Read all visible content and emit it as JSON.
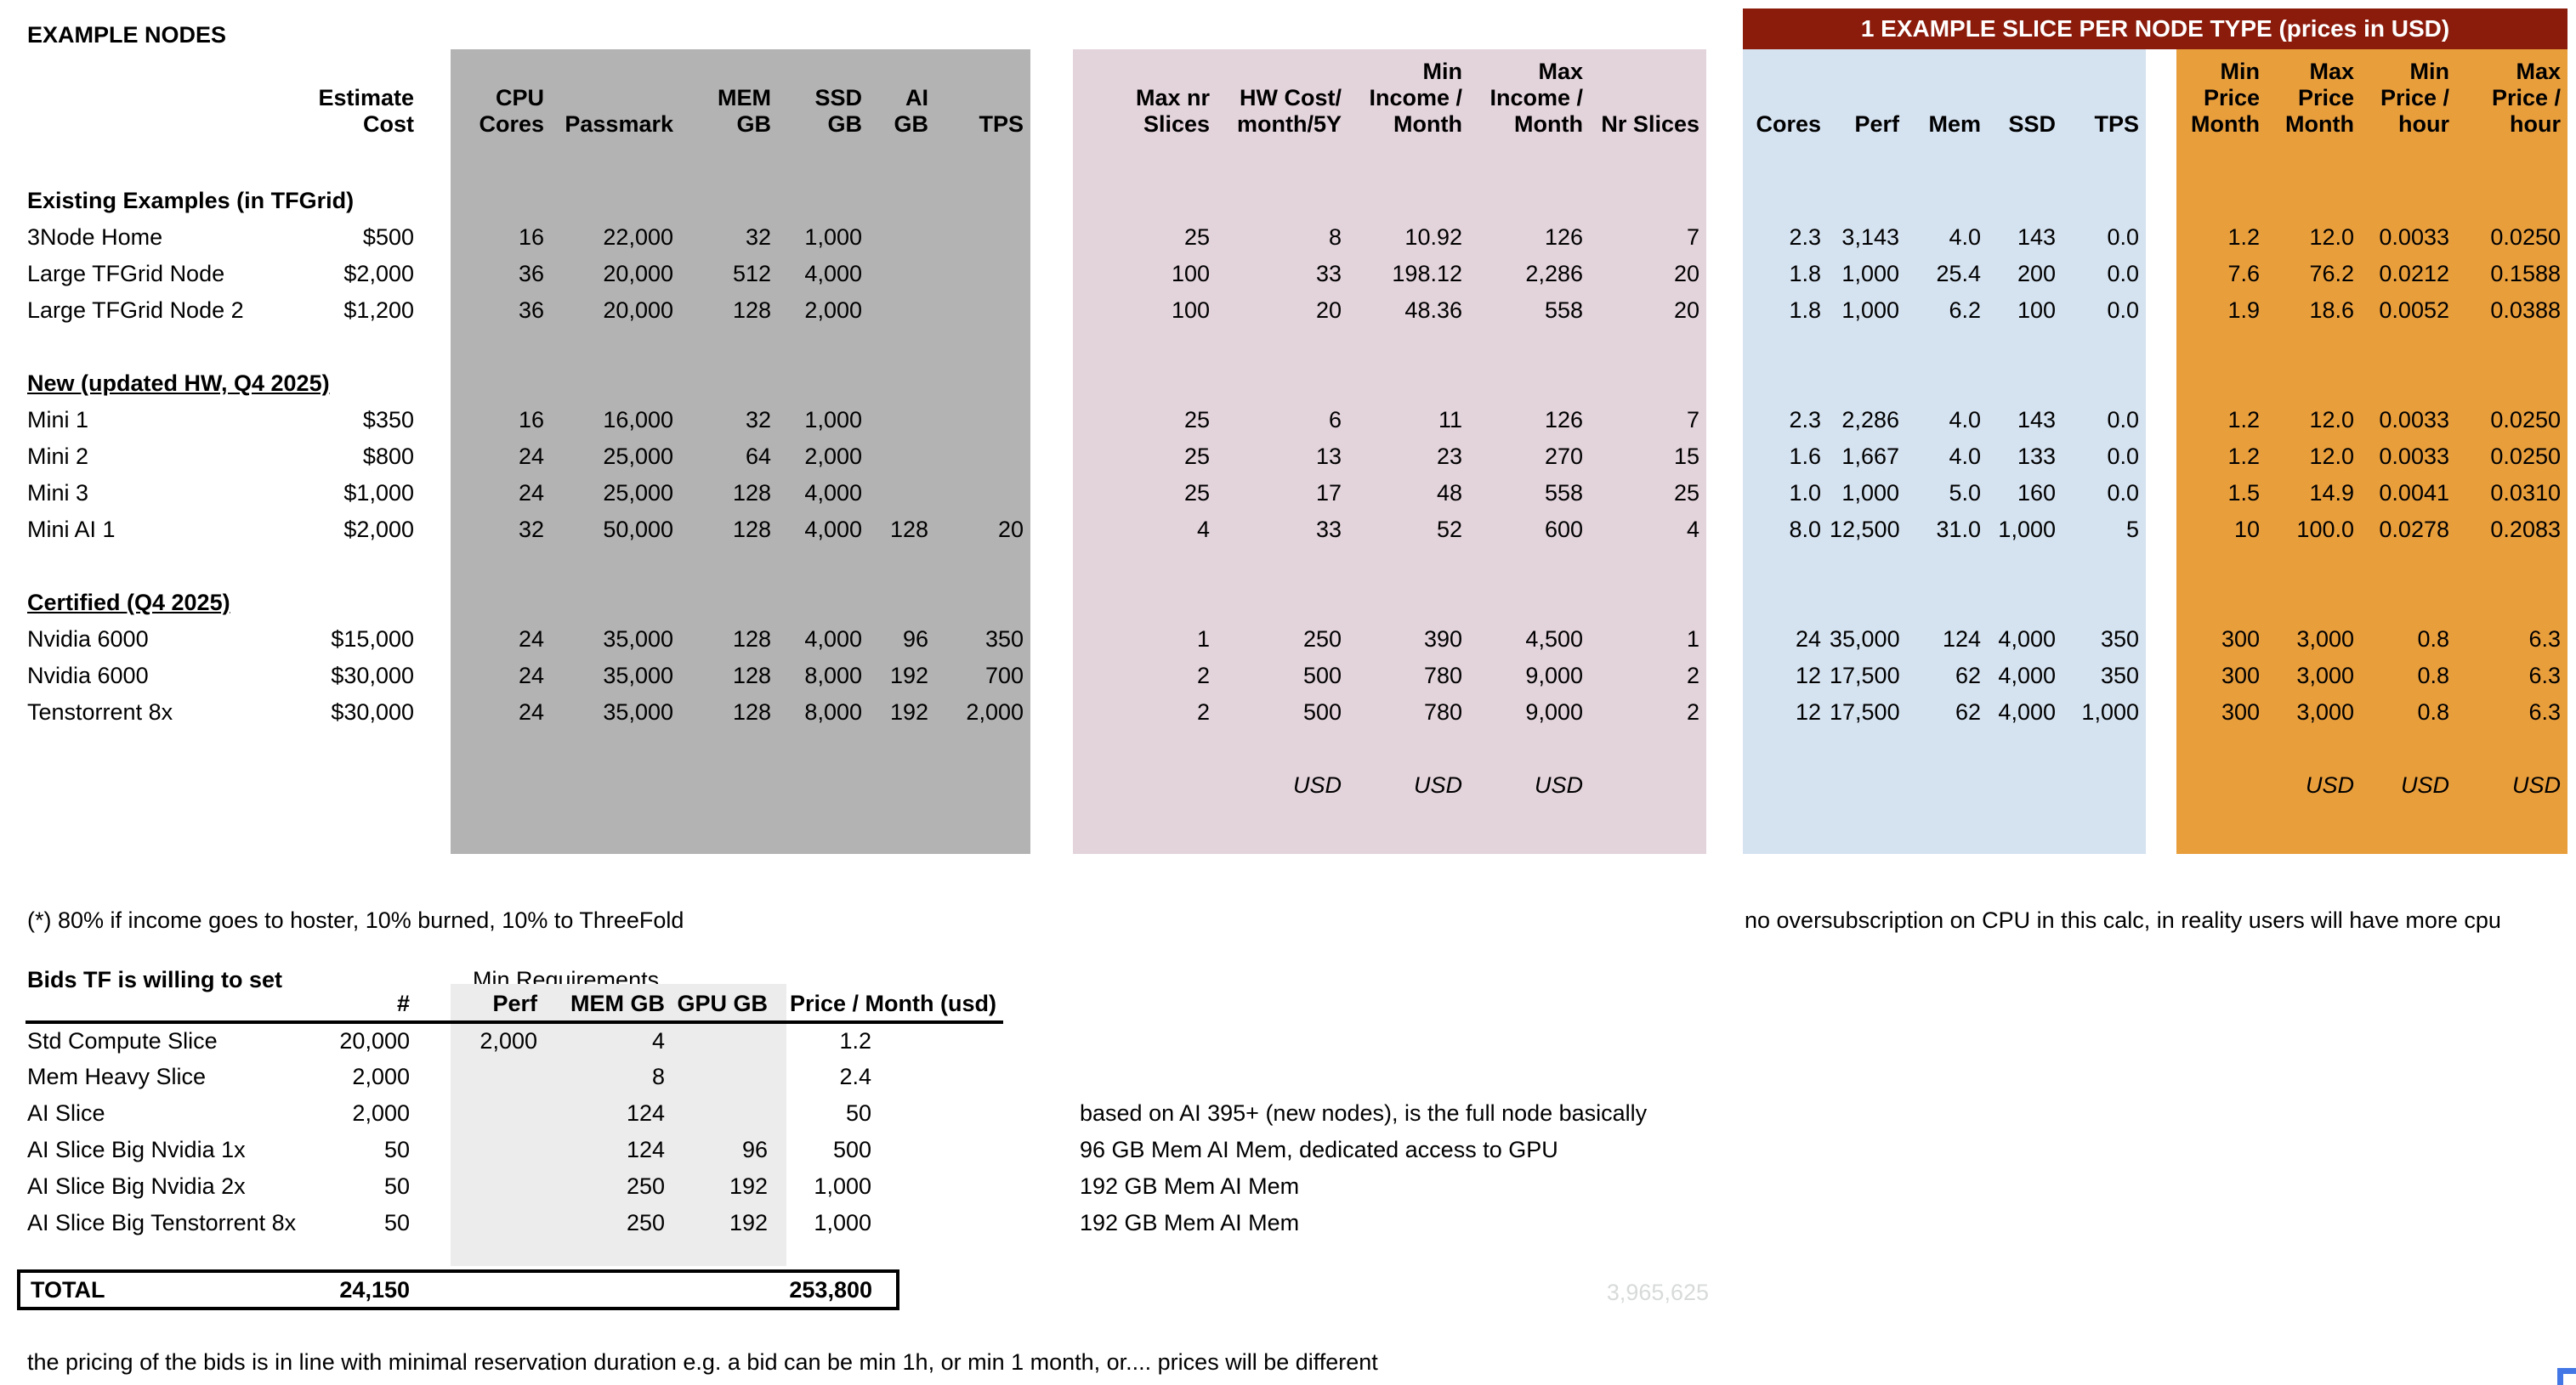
{
  "page_title": "EXAMPLE NODES",
  "colors": {
    "block_gray": "#b3b3b3",
    "block_pink": "#e3d3db",
    "block_blue": "#d5e2f0",
    "block_orange": "#e99e3c",
    "banner_maroon": "#8b1b0b",
    "bids_shade": "#ececec",
    "faint_text": "#d8dada",
    "selection_blue": "#4377e6"
  },
  "main_table": {
    "slice_banner": "1 EXAMPLE SLICE PER NODE TYPE (prices in USD)",
    "headers": {
      "estimate_cost": "Estimate\nCost",
      "gray": [
        "CPU\nCores",
        "Passmark",
        "MEM GB",
        "SSD\nGB",
        "AI\nGB",
        "TPS"
      ],
      "pink": [
        "Max nr\nSlices",
        "HW Cost/\nmonth/5Y",
        "Min\nIncome /\nMonth",
        "Max\nIncome /\nMonth",
        "Nr Slices"
      ],
      "blue": [
        "Cores",
        "Perf",
        "Mem",
        "SSD",
        "TPS"
      ],
      "orange": [
        "Min\nPrice\nMonth",
        "Max\nPrice\nMonth",
        "Min\nPrice /\nhour",
        "Max\nPrice /\nhour"
      ]
    },
    "groups": [
      {
        "label": "Existing Examples (in TFGrid)",
        "underline": false,
        "rows": [
          {
            "name": "3Node Home",
            "cost": "$500",
            "gray": [
              "16",
              "22,000",
              "32",
              "1,000",
              "",
              ""
            ],
            "pink": [
              "25",
              "8",
              "10.92",
              "126",
              "7"
            ],
            "blue": [
              "2.3",
              "3,143",
              "4.0",
              "143",
              "0.0"
            ],
            "orange": [
              "1.2",
              "12.0",
              "0.0033",
              "0.0250"
            ]
          },
          {
            "name": "Large TFGrid Node",
            "cost": "$2,000",
            "gray": [
              "36",
              "20,000",
              "512",
              "4,000",
              "",
              ""
            ],
            "pink": [
              "100",
              "33",
              "198.12",
              "2,286",
              "20"
            ],
            "blue": [
              "1.8",
              "1,000",
              "25.4",
              "200",
              "0.0"
            ],
            "orange": [
              "7.6",
              "76.2",
              "0.0212",
              "0.1588"
            ]
          },
          {
            "name": "Large TFGrid Node 2",
            "cost": "$1,200",
            "gray": [
              "36",
              "20,000",
              "128",
              "2,000",
              "",
              ""
            ],
            "pink": [
              "100",
              "20",
              "48.36",
              "558",
              "20"
            ],
            "blue": [
              "1.8",
              "1,000",
              "6.2",
              "100",
              "0.0"
            ],
            "orange": [
              "1.9",
              "18.6",
              "0.0052",
              "0.0388"
            ]
          }
        ]
      },
      {
        "label": "New (updated HW, Q4 2025)",
        "underline": true,
        "rows": [
          {
            "name": "Mini 1",
            "cost": "$350",
            "gray": [
              "16",
              "16,000",
              "32",
              "1,000",
              "",
              ""
            ],
            "pink": [
              "25",
              "6",
              "11",
              "126",
              "7"
            ],
            "blue": [
              "2.3",
              "2,286",
              "4.0",
              "143",
              "0.0"
            ],
            "orange": [
              "1.2",
              "12.0",
              "0.0033",
              "0.0250"
            ]
          },
          {
            "name": "Mini 2",
            "cost": "$800",
            "gray": [
              "24",
              "25,000",
              "64",
              "2,000",
              "",
              ""
            ],
            "pink": [
              "25",
              "13",
              "23",
              "270",
              "15"
            ],
            "blue": [
              "1.6",
              "1,667",
              "4.0",
              "133",
              "0.0"
            ],
            "orange": [
              "1.2",
              "12.0",
              "0.0033",
              "0.0250"
            ]
          },
          {
            "name": "Mini 3",
            "cost": "$1,000",
            "gray": [
              "24",
              "25,000",
              "128",
              "4,000",
              "",
              ""
            ],
            "pink": [
              "25",
              "17",
              "48",
              "558",
              "25"
            ],
            "blue": [
              "1.0",
              "1,000",
              "5.0",
              "160",
              "0.0"
            ],
            "orange": [
              "1.5",
              "14.9",
              "0.0041",
              "0.0310"
            ]
          },
          {
            "name": "Mini AI 1",
            "cost": "$2,000",
            "gray": [
              "32",
              "50,000",
              "128",
              "4,000",
              "128",
              "20"
            ],
            "pink": [
              "4",
              "33",
              "52",
              "600",
              "4"
            ],
            "blue": [
              "8.0",
              "12,500",
              "31.0",
              "1,000",
              "5"
            ],
            "orange": [
              "10",
              "100.0",
              "0.0278",
              "0.2083"
            ]
          }
        ]
      },
      {
        "label": "Certified (Q4 2025)",
        "underline": true,
        "rows": [
          {
            "name": "Nvidia 6000",
            "cost": "$15,000",
            "gray": [
              "24",
              "35,000",
              "128",
              "4,000",
              "96",
              "350"
            ],
            "pink": [
              "1",
              "250",
              "390",
              "4,500",
              "1"
            ],
            "blue": [
              "24",
              "35,000",
              "124",
              "4,000",
              "350"
            ],
            "orange": [
              "300",
              "3,000",
              "0.8",
              "6.3"
            ]
          },
          {
            "name": "Nvidia 6000",
            "cost": "$30,000",
            "gray": [
              "24",
              "35,000",
              "128",
              "8,000",
              "192",
              "700"
            ],
            "pink": [
              "2",
              "500",
              "780",
              "9,000",
              "2"
            ],
            "blue": [
              "12",
              "17,500",
              "62",
              "4,000",
              "350"
            ],
            "orange": [
              "300",
              "3,000",
              "0.8",
              "6.3"
            ]
          },
          {
            "name": "Tenstorrent 8x",
            "cost": "$30,000",
            "gray": [
              "24",
              "35,000",
              "128",
              "8,000",
              "192",
              "2,000"
            ],
            "pink": [
              "2",
              "500",
              "780",
              "9,000",
              "2"
            ],
            "blue": [
              "12",
              "17,500",
              "62",
              "4,000",
              "1,000"
            ],
            "orange": [
              "300",
              "3,000",
              "0.8",
              "6.3"
            ]
          }
        ]
      }
    ],
    "usd_row": {
      "pink": [
        "",
        "USD",
        "USD",
        "USD",
        ""
      ],
      "orange": [
        "",
        "USD",
        "USD",
        "USD"
      ]
    }
  },
  "footnotes": {
    "left": "(*) 80% if income goes to hoster, 10% burned, 10% to ThreeFold",
    "right": "no oversubscription on CPU in this calc, in reality users will have more cpu"
  },
  "bids_table": {
    "title": "Bids TF is willing to set",
    "min_requirements_label": "Min Requirements",
    "headers": [
      "#",
      "Perf",
      "MEM GB",
      "GPU GB",
      "Price / Month (usd)"
    ],
    "rows": [
      {
        "name": "Std Compute Slice",
        "count": "20,000",
        "perf": "2,000",
        "mem": "4",
        "gpu": "",
        "price": "1.2",
        "note": ""
      },
      {
        "name": "Mem Heavy Slice",
        "count": "2,000",
        "perf": "",
        "mem": "8",
        "gpu": "",
        "price": "2.4",
        "note": ""
      },
      {
        "name": "AI Slice",
        "count": "2,000",
        "perf": "",
        "mem": "124",
        "gpu": "",
        "price": "50",
        "note": "based on AI 395+ (new nodes), is the full node basically"
      },
      {
        "name": "AI Slice Big Nvidia 1x",
        "count": "50",
        "perf": "",
        "mem": "124",
        "gpu": "96",
        "price": "500",
        "note": "96 GB Mem AI Mem, dedicated access to GPU"
      },
      {
        "name": "AI Slice Big Nvidia 2x",
        "count": "50",
        "perf": "",
        "mem": "250",
        "gpu": "192",
        "price": "1,000",
        "note": "192 GB Mem AI Mem"
      },
      {
        "name": "AI Slice Big Tenstorrent 8x",
        "count": "50",
        "perf": "",
        "mem": "250",
        "gpu": "192",
        "price": "1,000",
        "note": "192 GB Mem AI Mem"
      }
    ],
    "total": {
      "label": "TOTAL",
      "count": "24,150",
      "price": "253,800"
    },
    "faint_total": "3,965,625"
  },
  "bottom_note": "the pricing of the bids is in line with minimal reservation duration e.g. a bid can be min 1h, or min 1 month, or.... prices will be different"
}
